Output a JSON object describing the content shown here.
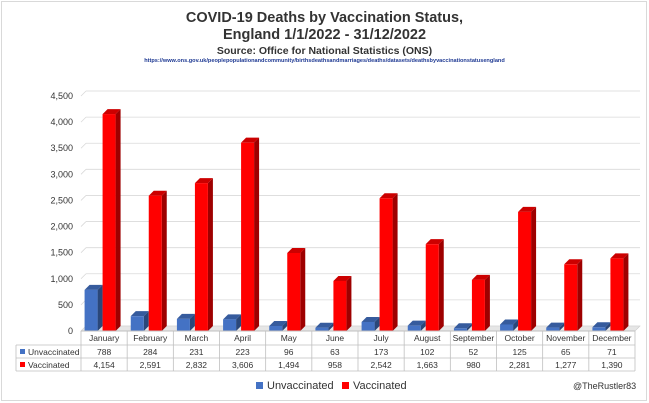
{
  "chart_data": {
    "type": "bar",
    "title": "COVID-19 Deaths by Vaccination Status,",
    "subtitle": "England 1/1/2022 - 31/12/2022",
    "source": "Source: Office for National Statistics (ONS)",
    "url": "https://www.ons.gov.uk/peoplepopulationandcommunity/birthsdeathsandmarriages/deaths/datasets/deathsbyvaccinationstatusengland",
    "categories": [
      "January",
      "February",
      "March",
      "April",
      "May",
      "June",
      "July",
      "August",
      "September",
      "October",
      "November",
      "December"
    ],
    "series": [
      {
        "name": "Unvaccinated",
        "color": "#4472c4",
        "values": [
          788,
          284,
          231,
          223,
          96,
          63,
          173,
          102,
          52,
          125,
          65,
          71
        ],
        "labels": [
          "788",
          "284",
          "231",
          "223",
          "96",
          "63",
          "173",
          "102",
          "52",
          "125",
          "65",
          "71"
        ]
      },
      {
        "name": "Vaccinated",
        "color": "#ff0000",
        "values": [
          4154,
          2591,
          2832,
          3606,
          1494,
          958,
          2542,
          1663,
          980,
          2281,
          1277,
          1390
        ],
        "labels": [
          "4,154",
          "2,591",
          "2,832",
          "3,606",
          "1,494",
          "958",
          "2,542",
          "1,663",
          "980",
          "2,281",
          "1,277",
          "1,390"
        ]
      }
    ],
    "yticks": [
      "0",
      "500",
      "1,000",
      "1,500",
      "2,000",
      "2,500",
      "3,000",
      "3,500",
      "4,000",
      "4,500"
    ],
    "ylim": [
      0,
      4500
    ],
    "grid": true,
    "legend": "bottom",
    "data_table": true
  },
  "credit": "@TheRustler83"
}
